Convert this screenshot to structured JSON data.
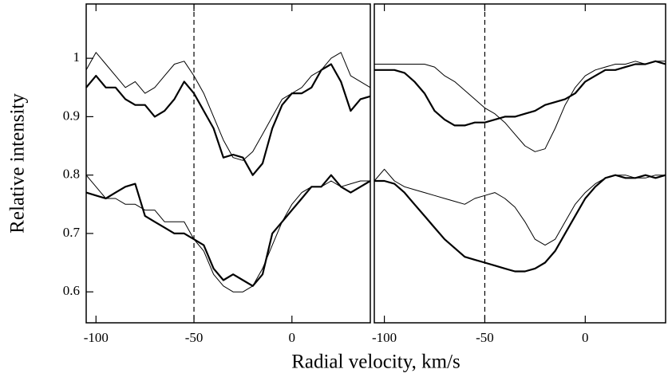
{
  "chart_data": [
    {
      "type": "line",
      "ylabel": "Relative intensity",
      "xlabel": "Radial velocity, km/s",
      "xlim": [
        -105,
        40
      ],
      "ylim": [
        0.547,
        1.093
      ],
      "xticks": [
        -100,
        -50,
        0
      ],
      "yticks": [
        0.6,
        0.7,
        0.8,
        0.9,
        1.0
      ],
      "vline": -50,
      "x": [
        -105,
        -100,
        -95,
        -90,
        -85,
        -80,
        -75,
        -70,
        -65,
        -60,
        -55,
        -50,
        -45,
        -40,
        -35,
        -30,
        -25,
        -20,
        -15,
        -10,
        -5,
        0,
        5,
        10,
        15,
        20,
        25,
        30,
        35,
        40
      ],
      "series": [
        {
          "color": "#000000",
          "linewidth": 1,
          "values": [
            0.98,
            1.01,
            0.99,
            0.97,
            0.95,
            0.96,
            0.94,
            0.95,
            0.97,
            0.99,
            0.995,
            0.97,
            0.94,
            0.9,
            0.86,
            0.83,
            0.825,
            0.84,
            0.87,
            0.9,
            0.93,
            0.94,
            0.95,
            0.97,
            0.98,
            1.0,
            1.01,
            0.97,
            0.96,
            0.95
          ]
        },
        {
          "color": "#000000",
          "linewidth": 2.2,
          "values": [
            0.95,
            0.97,
            0.95,
            0.95,
            0.93,
            0.92,
            0.92,
            0.9,
            0.91,
            0.93,
            0.96,
            0.94,
            0.91,
            0.88,
            0.83,
            0.835,
            0.83,
            0.8,
            0.82,
            0.88,
            0.92,
            0.94,
            0.94,
            0.95,
            0.98,
            0.99,
            0.96,
            0.91,
            0.93,
            0.935
          ]
        },
        {
          "color": "#000000",
          "linewidth": 1,
          "values": [
            0.8,
            0.78,
            0.76,
            0.76,
            0.75,
            0.75,
            0.74,
            0.74,
            0.72,
            0.72,
            0.72,
            0.69,
            0.67,
            0.63,
            0.61,
            0.6,
            0.6,
            0.61,
            0.64,
            0.68,
            0.72,
            0.75,
            0.77,
            0.78,
            0.78,
            0.79,
            0.78,
            0.785,
            0.79,
            0.79
          ]
        },
        {
          "color": "#000000",
          "linewidth": 2.2,
          "values": [
            0.77,
            0.765,
            0.76,
            0.77,
            0.78,
            0.785,
            0.73,
            0.72,
            0.71,
            0.7,
            0.7,
            0.69,
            0.68,
            0.64,
            0.62,
            0.63,
            0.62,
            0.61,
            0.63,
            0.7,
            0.72,
            0.74,
            0.76,
            0.78,
            0.78,
            0.8,
            0.78,
            0.77,
            0.78,
            0.79
          ]
        }
      ]
    },
    {
      "type": "line",
      "xlim": [
        -105,
        40
      ],
      "ylim": [
        0.547,
        1.093
      ],
      "xticks": [
        -100,
        -50,
        0
      ],
      "vline": -50,
      "x": [
        -105,
        -100,
        -95,
        -90,
        -85,
        -80,
        -75,
        -70,
        -65,
        -60,
        -55,
        -50,
        -45,
        -40,
        -35,
        -30,
        -25,
        -20,
        -15,
        -10,
        -5,
        0,
        5,
        10,
        15,
        20,
        25,
        30,
        35,
        40
      ],
      "series": [
        {
          "color": "#000000",
          "linewidth": 1,
          "values": [
            0.99,
            0.99,
            0.99,
            0.99,
            0.99,
            0.99,
            0.985,
            0.97,
            0.96,
            0.945,
            0.93,
            0.915,
            0.905,
            0.89,
            0.87,
            0.85,
            0.84,
            0.845,
            0.88,
            0.92,
            0.95,
            0.97,
            0.98,
            0.985,
            0.99,
            0.99,
            0.995,
            0.99,
            0.995,
            0.995
          ]
        },
        {
          "color": "#000000",
          "linewidth": 2.2,
          "values": [
            0.98,
            0.98,
            0.98,
            0.975,
            0.96,
            0.94,
            0.91,
            0.895,
            0.885,
            0.885,
            0.89,
            0.89,
            0.895,
            0.9,
            0.9,
            0.905,
            0.91,
            0.92,
            0.925,
            0.93,
            0.94,
            0.96,
            0.97,
            0.98,
            0.98,
            0.985,
            0.99,
            0.99,
            0.995,
            0.99
          ]
        },
        {
          "color": "#000000",
          "linewidth": 1,
          "values": [
            0.79,
            0.81,
            0.79,
            0.78,
            0.775,
            0.77,
            0.765,
            0.76,
            0.755,
            0.75,
            0.76,
            0.765,
            0.77,
            0.76,
            0.745,
            0.72,
            0.69,
            0.68,
            0.69,
            0.72,
            0.75,
            0.77,
            0.785,
            0.795,
            0.8,
            0.8,
            0.795,
            0.795,
            0.8,
            0.8
          ]
        },
        {
          "color": "#000000",
          "linewidth": 2.2,
          "values": [
            0.79,
            0.79,
            0.785,
            0.77,
            0.75,
            0.73,
            0.71,
            0.69,
            0.675,
            0.66,
            0.655,
            0.65,
            0.645,
            0.64,
            0.635,
            0.635,
            0.64,
            0.65,
            0.67,
            0.7,
            0.73,
            0.76,
            0.78,
            0.795,
            0.8,
            0.795,
            0.795,
            0.8,
            0.795,
            0.8
          ]
        }
      ]
    }
  ]
}
